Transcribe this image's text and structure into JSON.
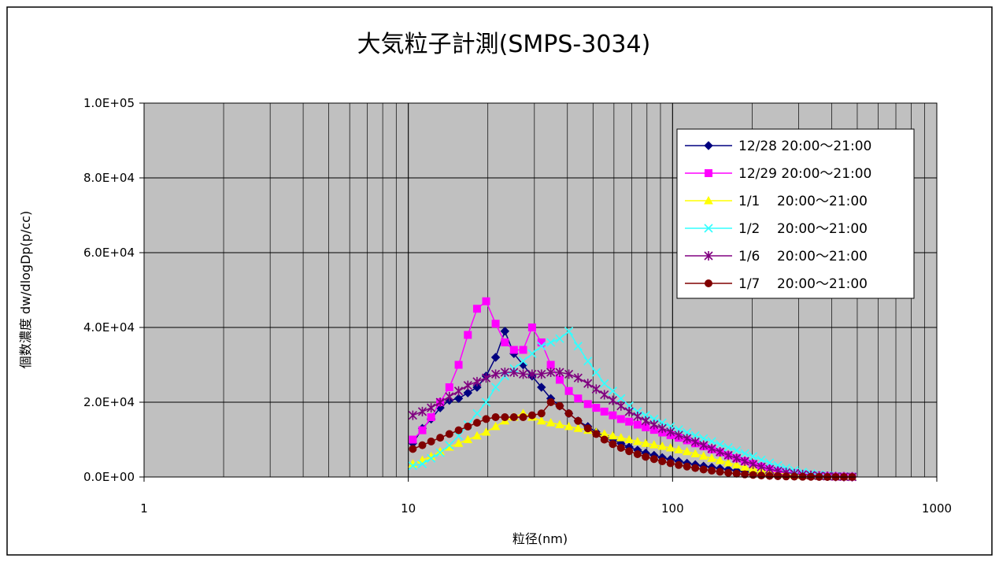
{
  "chart_data": {
    "type": "line",
    "title": "大気粒子計測(SMPS-3034)",
    "xlabel": "粒径(nm)",
    "ylabel": "個数濃度 dw/dlogDp(p/cc)",
    "xscale": "log",
    "xlim": [
      1,
      1000
    ],
    "ylim": [
      0,
      100000
    ],
    "x_tick_labels": [
      "1",
      "10",
      "100",
      "1000"
    ],
    "y_tick_labels": [
      "0.0E+00",
      "2.0E+04",
      "4.0E+04",
      "6.0E+04",
      "8.0E+04",
      "1.0E+05"
    ],
    "grid": true,
    "plot_background": "#c0c0c0",
    "legend_position": "top-right",
    "series": [
      {
        "name": "12/28 20:00～21:00",
        "color": "#000080",
        "marker": "diamond",
        "x": [
          10.4,
          11.3,
          12.2,
          13.2,
          14.3,
          15.5,
          16.8,
          18.2,
          19.7,
          21.4,
          23.2,
          25.1,
          27.2,
          29.4,
          31.9,
          34.6,
          37.4,
          40.5,
          43.9,
          47.8,
          51.4,
          55.2,
          59.4,
          63.8,
          68.5,
          73.7,
          79.1,
          85.1,
          91.4,
          98.2,
          105.5,
          113.4,
          121.9,
          131.0,
          140.7,
          151.2,
          162.5,
          174.7,
          187.7,
          201.7,
          216.7,
          232.9,
          250.3,
          269.0,
          289.0,
          310.6,
          333.8,
          358.7,
          385.4,
          414.2,
          445.1,
          478.3
        ],
        "y": [
          9000,
          13000,
          15500,
          18500,
          20500,
          21000,
          22500,
          24000,
          27000,
          32000,
          39000,
          33000,
          30000,
          27000,
          24000,
          21000,
          19000,
          17000,
          15000,
          13500,
          12000,
          11000,
          10000,
          9000,
          8000,
          7200,
          6400,
          5800,
          5200,
          4700,
          4200,
          3700,
          3300,
          2900,
          2600,
          2300,
          2000,
          1700,
          1400,
          1200,
          1000,
          800,
          650,
          500,
          400,
          300,
          250,
          200,
          150,
          100,
          80,
          60
        ]
      },
      {
        "name": "12/29 20:00～21:00",
        "color": "#ff00ff",
        "marker": "square",
        "x": [
          10.4,
          11.3,
          12.2,
          13.2,
          14.3,
          15.5,
          16.8,
          18.2,
          19.7,
          21.4,
          23.2,
          25.1,
          27.2,
          29.4,
          31.9,
          34.6,
          37.4,
          40.5,
          43.9,
          47.8,
          51.4,
          55.2,
          59.4,
          63.8,
          68.5,
          73.7,
          79.1,
          85.1,
          91.4,
          98.2,
          105.5,
          113.4,
          121.9,
          131.0,
          140.7,
          151.2,
          162.5,
          174.7,
          187.7,
          201.7,
          216.7,
          232.9,
          250.3,
          269.0,
          289.0,
          310.6,
          333.8,
          358.7,
          385.4,
          414.2,
          445.1,
          478.3
        ],
        "y": [
          10000,
          12500,
          16000,
          20000,
          24000,
          30000,
          38000,
          45000,
          47000,
          41000,
          36000,
          34000,
          34000,
          40000,
          36000,
          30000,
          26000,
          23000,
          21000,
          19500,
          18500,
          17500,
          16500,
          15500,
          14800,
          14000,
          13300,
          12600,
          11900,
          11200,
          10500,
          9800,
          9000,
          8200,
          7400,
          6600,
          5800,
          5000,
          4200,
          3500,
          2800,
          2200,
          1700,
          1300,
          1000,
          700,
          500,
          350,
          250,
          150,
          100,
          60
        ]
      },
      {
        "name": "1/1    20:00～21:00",
        "color": "#ffff00",
        "marker": "triangle",
        "x": [
          10.4,
          11.3,
          12.2,
          13.2,
          14.3,
          15.5,
          16.8,
          18.2,
          19.7,
          21.4,
          23.2,
          25.1,
          27.2,
          29.4,
          31.9,
          34.6,
          37.4,
          40.5,
          43.9,
          47.8,
          51.4,
          55.2,
          59.4,
          63.8,
          68.5,
          73.7,
          79.1,
          85.1,
          91.4,
          98.2,
          105.5,
          113.4,
          121.9,
          131.0,
          140.7,
          151.2,
          162.5,
          174.7,
          187.7,
          201.7,
          216.7,
          232.9,
          250.3,
          269.0,
          289.0,
          310.6,
          333.8,
          358.7,
          385.4,
          414.2,
          445.1,
          478.3
        ],
        "y": [
          3500,
          4500,
          5500,
          6800,
          8000,
          9000,
          10000,
          11000,
          12000,
          13500,
          15000,
          16000,
          17000,
          16000,
          15000,
          14500,
          14000,
          13500,
          13000,
          12500,
          12000,
          11500,
          11000,
          10500,
          10000,
          9500,
          9000,
          8600,
          8200,
          7800,
          7300,
          6800,
          6200,
          5600,
          5000,
          4400,
          3800,
          3200,
          2600,
          2100,
          1700,
          1300,
          1000,
          750,
          550,
          400,
          300,
          200,
          150,
          100,
          80,
          60
        ]
      },
      {
        "name": "1/2    20:00～21:00",
        "color": "#33ffff",
        "marker": "x",
        "x": [
          10.4,
          11.3,
          12.2,
          13.2,
          14.3,
          15.5,
          16.8,
          18.2,
          19.7,
          21.4,
          23.2,
          25.1,
          27.2,
          29.4,
          31.9,
          34.6,
          37.4,
          40.5,
          43.9,
          47.8,
          51.4,
          55.2,
          59.4,
          63.8,
          68.5,
          73.7,
          79.1,
          85.1,
          91.4,
          98.2,
          105.5,
          113.4,
          121.9,
          131.0,
          140.7,
          151.2,
          162.5,
          174.7,
          187.7,
          201.7,
          216.7,
          232.9,
          250.3,
          269.0,
          289.0,
          310.6,
          333.8,
          358.7,
          385.4,
          414.2,
          445.1,
          478.3
        ],
        "y": [
          3000,
          3500,
          5000,
          6500,
          8500,
          11000,
          14000,
          17000,
          20000,
          24000,
          27000,
          29000,
          31000,
          33000,
          35000,
          36000,
          37000,
          39000,
          35000,
          31000,
          28000,
          25000,
          23000,
          21000,
          19000,
          17500,
          16500,
          15500,
          14500,
          13500,
          12700,
          11900,
          11100,
          10300,
          9500,
          8700,
          7900,
          7100,
          6300,
          5500,
          4600,
          3800,
          3100,
          2400,
          1800,
          1300,
          900,
          600,
          400,
          250,
          150,
          80
        ]
      },
      {
        "name": "1/6    20:00～21:00",
        "color": "#800080",
        "marker": "star",
        "x": [
          10.4,
          11.3,
          12.2,
          13.2,
          14.3,
          15.5,
          16.8,
          18.2,
          19.7,
          21.4,
          23.2,
          25.1,
          27.2,
          29.4,
          31.9,
          34.6,
          37.4,
          40.5,
          43.9,
          47.8,
          51.4,
          55.2,
          59.4,
          63.8,
          68.5,
          73.7,
          79.1,
          85.1,
          91.4,
          98.2,
          105.5,
          113.4,
          121.9,
          131.0,
          140.7,
          151.2,
          162.5,
          174.7,
          187.7,
          201.7,
          216.7,
          232.9,
          250.3,
          269.0,
          289.0,
          310.6,
          333.8,
          358.7,
          385.4,
          414.2,
          445.1,
          478.3
        ],
        "y": [
          16500,
          17500,
          18500,
          20000,
          21500,
          23000,
          24500,
          25500,
          26500,
          27500,
          28000,
          28000,
          27500,
          27500,
          27500,
          28000,
          28000,
          27500,
          26500,
          25000,
          23500,
          22000,
          20500,
          19000,
          17500,
          16200,
          15000,
          14000,
          13000,
          12100,
          11200,
          10300,
          9400,
          8500,
          7600,
          6700,
          5800,
          5000,
          4200,
          3400,
          2700,
          2100,
          1600,
          1200,
          900,
          650,
          450,
          300,
          200,
          120,
          80,
          50
        ]
      },
      {
        "name": "1/7    20:00～21:00",
        "color": "#800000",
        "marker": "circle",
        "x": [
          10.4,
          11.3,
          12.2,
          13.2,
          14.3,
          15.5,
          16.8,
          18.2,
          19.7,
          21.4,
          23.2,
          25.1,
          27.2,
          29.4,
          31.9,
          34.6,
          37.4,
          40.5,
          43.9,
          47.8,
          51.4,
          55.2,
          59.4,
          63.8,
          68.5,
          73.7,
          79.1,
          85.1,
          91.4,
          98.2,
          105.5,
          113.4,
          121.9,
          131.0,
          140.7,
          151.2,
          162.5,
          174.7,
          187.7,
          201.7,
          216.7,
          232.9,
          250.3,
          269.0,
          289.0,
          310.6,
          333.8,
          358.7,
          385.4,
          414.2,
          445.1,
          478.3
        ],
        "y": [
          7500,
          8500,
          9500,
          10500,
          11500,
          12500,
          13500,
          14500,
          15500,
          16000,
          16000,
          16000,
          16000,
          16500,
          17000,
          20000,
          19000,
          17000,
          15000,
          13000,
          11500,
          10000,
          8800,
          7800,
          6900,
          6100,
          5400,
          4800,
          4200,
          3700,
          3200,
          2800,
          2400,
          2000,
          1700,
          1400,
          1100,
          900,
          700,
          550,
          400,
          300,
          220,
          150,
          100,
          70,
          50,
          30,
          20,
          10,
          5,
          0
        ]
      }
    ]
  }
}
